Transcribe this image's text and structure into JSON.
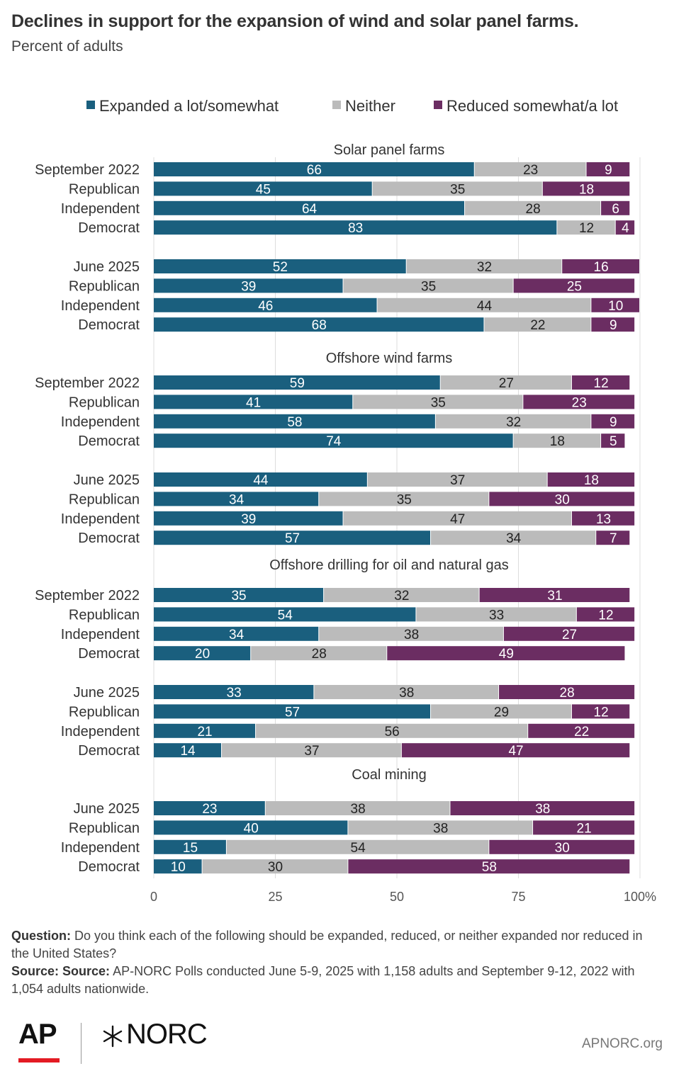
{
  "title": "Declines in support for the expansion of wind and solar panel farms.",
  "subtitle": "Percent of adults",
  "colors": {
    "expanded": "#1a5f7e",
    "neither": "#bbbbbb",
    "reduced": "#6b2d62",
    "grid": "#dddddd"
  },
  "chart_data": {
    "type": "bar",
    "orientation": "horizontal",
    "stacked": true,
    "xlim": [
      0,
      100
    ],
    "x_ticks": [
      "0",
      "25",
      "50",
      "75",
      "100%"
    ],
    "grid": true,
    "legend_position": "top",
    "series_names": [
      "Expanded a lot/somewhat",
      "Neither",
      "Reduced somewhat/a lot"
    ],
    "panels": [
      {
        "title": "Solar panel farms",
        "groups": [
          {
            "rows": [
              {
                "label": "September 2022",
                "values": [
                  66,
                  23,
                  9
                ]
              },
              {
                "label": "Republican",
                "values": [
                  45,
                  35,
                  18
                ]
              },
              {
                "label": "Independent",
                "values": [
                  64,
                  28,
                  6
                ]
              },
              {
                "label": "Democrat",
                "values": [
                  83,
                  12,
                  4
                ]
              }
            ]
          },
          {
            "rows": [
              {
                "label": "June 2025",
                "values": [
                  52,
                  32,
                  16
                ]
              },
              {
                "label": "Republican",
                "values": [
                  39,
                  35,
                  25
                ]
              },
              {
                "label": "Independent",
                "values": [
                  46,
                  44,
                  10
                ]
              },
              {
                "label": "Democrat",
                "values": [
                  68,
                  22,
                  9
                ]
              }
            ]
          }
        ]
      },
      {
        "title": "Offshore wind farms",
        "groups": [
          {
            "rows": [
              {
                "label": "September 2022",
                "values": [
                  59,
                  27,
                  12
                ]
              },
              {
                "label": "Republican",
                "values": [
                  41,
                  35,
                  23
                ]
              },
              {
                "label": "Independent",
                "values": [
                  58,
                  32,
                  9
                ]
              },
              {
                "label": "Democrat",
                "values": [
                  74,
                  18,
                  5
                ]
              }
            ]
          },
          {
            "rows": [
              {
                "label": "June 2025",
                "values": [
                  44,
                  37,
                  18
                ]
              },
              {
                "label": "Republican",
                "values": [
                  34,
                  35,
                  30
                ]
              },
              {
                "label": "Independent",
                "values": [
                  39,
                  47,
                  13
                ]
              },
              {
                "label": "Democrat",
                "values": [
                  57,
                  34,
                  7
                ]
              }
            ]
          }
        ]
      },
      {
        "title": "Offshore drilling for oil and natural gas",
        "groups": [
          {
            "rows": [
              {
                "label": "September 2022",
                "values": [
                  35,
                  32,
                  31
                ]
              },
              {
                "label": "Republican",
                "values": [
                  54,
                  33,
                  12
                ]
              },
              {
                "label": "Independent",
                "values": [
                  34,
                  38,
                  27
                ]
              },
              {
                "label": "Democrat",
                "values": [
                  20,
                  28,
                  49
                ]
              }
            ]
          },
          {
            "rows": [
              {
                "label": "June 2025",
                "values": [
                  33,
                  38,
                  28
                ]
              },
              {
                "label": "Republican",
                "values": [
                  57,
                  29,
                  12
                ]
              },
              {
                "label": "Independent",
                "values": [
                  21,
                  56,
                  22
                ]
              },
              {
                "label": "Democrat",
                "values": [
                  14,
                  37,
                  47
                ]
              }
            ]
          }
        ]
      },
      {
        "title": "Coal mining",
        "groups": [
          {
            "rows": [
              {
                "label": "June 2025",
                "values": [
                  23,
                  38,
                  38
                ]
              },
              {
                "label": "Republican",
                "values": [
                  40,
                  38,
                  21
                ]
              },
              {
                "label": "Independent",
                "values": [
                  15,
                  54,
                  30
                ]
              },
              {
                "label": "Democrat",
                "values": [
                  10,
                  30,
                  58
                ]
              }
            ]
          }
        ]
      }
    ]
  },
  "notes": {
    "question_label": "Question:",
    "question_text": "Do you think each of the following should be expanded, reduced, or neither expanded nor reduced in the United States?",
    "source_label": "Source: Source:",
    "source_text": "AP-NORC Polls conducted June 5-9, 2025 with 1,158 adults and September 9-12, 2022 with 1,054 adults nationwide."
  },
  "footer": {
    "ap_logo": "AP",
    "norc_logo": "NORC",
    "site": "APNORC.org"
  }
}
